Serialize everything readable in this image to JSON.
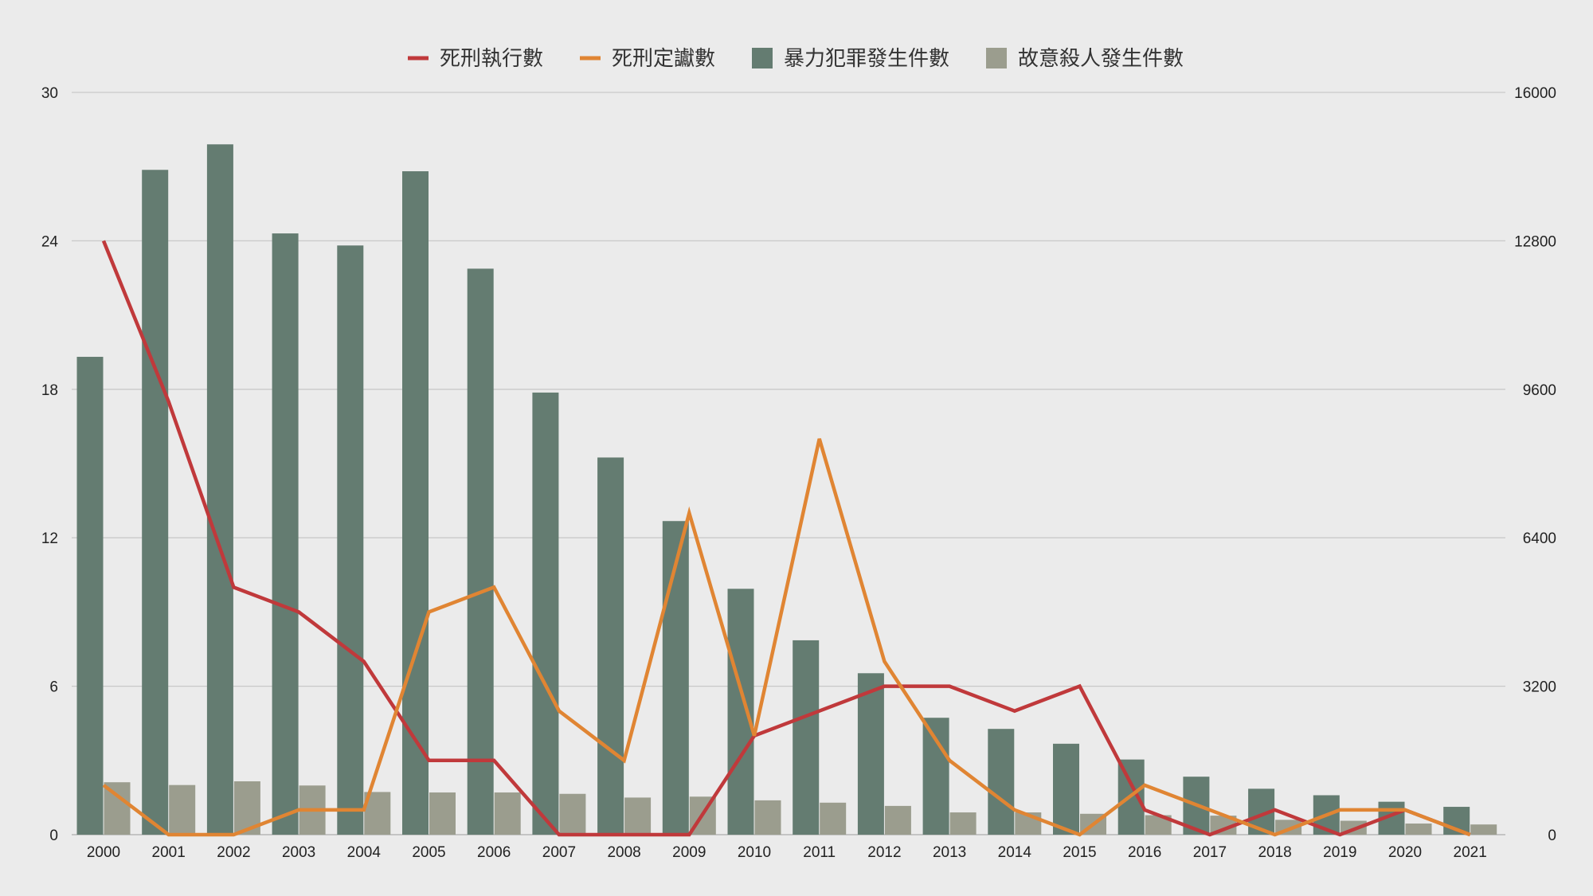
{
  "chart_data": {
    "type": "bar",
    "title": "",
    "xlabel": "",
    "ylabel": "",
    "categories": [
      "2000",
      "2001",
      "2002",
      "2003",
      "2004",
      "2005",
      "2006",
      "2007",
      "2008",
      "2009",
      "2010",
      "2011",
      "2012",
      "2013",
      "2014",
      "2015",
      "2016",
      "2017",
      "2018",
      "2019",
      "2020",
      "2021"
    ],
    "y_left": {
      "range": [
        0,
        30
      ],
      "ticks": [
        "0",
        "6",
        "12",
        "18",
        "24",
        "30"
      ]
    },
    "y_right": {
      "range": [
        0,
        16000
      ],
      "ticks": [
        "0",
        "3200",
        "6400",
        "9600",
        "12800",
        "16000"
      ]
    },
    "grid": true,
    "legend_position": "top",
    "series": [
      {
        "name": "死刑執行數",
        "kind": "line",
        "axis": "left",
        "color": "#c0393b",
        "values": [
          24,
          17.5,
          10,
          9,
          7,
          3,
          3,
          0,
          0,
          0,
          4,
          5,
          6,
          6,
          5,
          6,
          1,
          0,
          1,
          0,
          1,
          0
        ]
      },
      {
        "name": "死刑定讞數",
        "kind": "line",
        "axis": "left",
        "color": "#e08533",
        "values": [
          2,
          0,
          0,
          1,
          1,
          9,
          10,
          5,
          3,
          13,
          4,
          16,
          7,
          3,
          1,
          0,
          2,
          1,
          0,
          1,
          1,
          0
        ]
      },
      {
        "name": "暴力犯罪發生件數",
        "kind": "bar",
        "axis": "right",
        "color": "#647c71",
        "values": [
          10300,
          14330,
          14880,
          12960,
          12700,
          14300,
          12200,
          9530,
          8130,
          6760,
          5300,
          4190,
          3480,
          2520,
          2280,
          1960,
          1620,
          1250,
          990,
          850,
          710,
          600
        ]
      },
      {
        "name": "故意殺人發生件數",
        "kind": "bar",
        "axis": "right",
        "color": "#9b9d8e",
        "values": [
          1130,
          1070,
          1150,
          1060,
          920,
          910,
          910,
          880,
          800,
          820,
          740,
          690,
          620,
          480,
          480,
          450,
          420,
          410,
          320,
          300,
          240,
          220
        ]
      }
    ]
  }
}
